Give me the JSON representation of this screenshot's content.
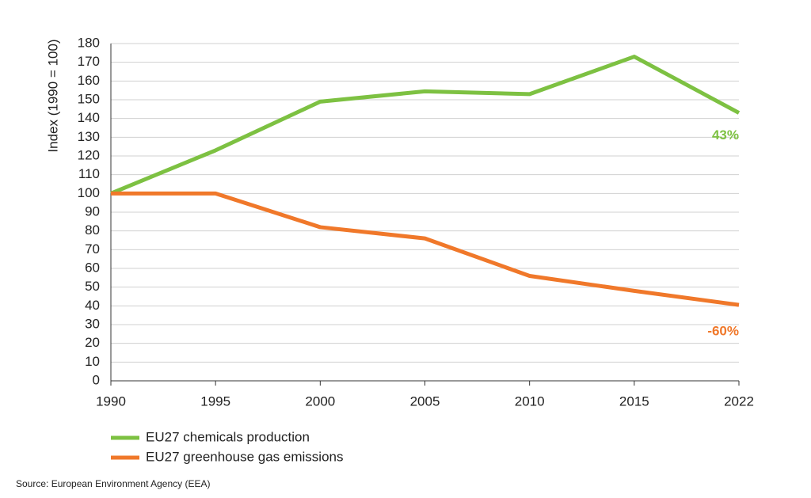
{
  "chart_data": {
    "type": "line",
    "categories": [
      "1990",
      "1995",
      "2000",
      "2005",
      "2010",
      "2015",
      "2022"
    ],
    "series": [
      {
        "name": "EU27 chemicals production",
        "color": "#7dc142",
        "values": [
          100,
          123,
          149,
          154.5,
          153,
          173,
          143
        ]
      },
      {
        "name": "EU27 greenhouse gas emissions",
        "color": "#f0782a",
        "values": [
          100,
          100,
          82,
          76,
          56,
          48,
          40.5
        ]
      }
    ],
    "annotations": [
      "43%",
      "-60%"
    ],
    "y_label": "Index (1990 = 100)",
    "ylim": [
      0,
      180
    ],
    "yticks": [
      0,
      10,
      20,
      30,
      40,
      50,
      60,
      70,
      80,
      90,
      100,
      110,
      120,
      130,
      140,
      150,
      160,
      170,
      180
    ],
    "grid": true,
    "source": "Source: European Environment Agency (EEA)"
  }
}
